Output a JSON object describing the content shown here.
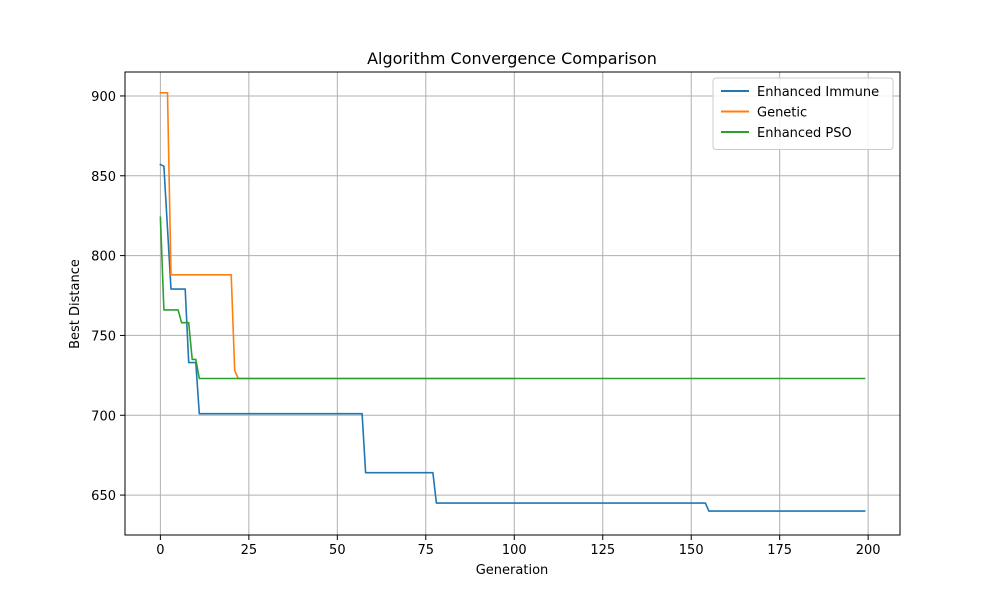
{
  "chart_data": {
    "type": "line",
    "title": "Algorithm Convergence Comparison",
    "xlabel": "Generation",
    "ylabel": "Best Distance",
    "xlim": [
      -10,
      209
    ],
    "ylim": [
      625,
      915
    ],
    "xticks": [
      0,
      25,
      50,
      75,
      100,
      125,
      150,
      175,
      200
    ],
    "yticks": [
      650,
      700,
      750,
      800,
      850,
      900
    ],
    "grid": true,
    "legend_position": "top-right",
    "series": [
      {
        "name": "Enhanced Immune",
        "color": "#1f77b4",
        "points": [
          [
            0,
            857
          ],
          [
            1,
            856
          ],
          [
            3,
            779
          ],
          [
            7,
            779
          ],
          [
            8,
            733
          ],
          [
            10,
            733
          ],
          [
            11,
            701
          ],
          [
            57,
            701
          ],
          [
            58,
            664
          ],
          [
            77,
            664
          ],
          [
            78,
            645
          ],
          [
            154,
            645
          ],
          [
            155,
            640
          ],
          [
            199,
            640
          ]
        ]
      },
      {
        "name": "Genetic",
        "color": "#ff7f0e",
        "points": [
          [
            0,
            902
          ],
          [
            2,
            902
          ],
          [
            3,
            788
          ],
          [
            20,
            788
          ],
          [
            21,
            728
          ],
          [
            22,
            723
          ],
          [
            100,
            723
          ]
        ]
      },
      {
        "name": "Enhanced PSO",
        "color": "#2ca02c",
        "points": [
          [
            0,
            824
          ],
          [
            1,
            766
          ],
          [
            5,
            766
          ],
          [
            6,
            758
          ],
          [
            8,
            758
          ],
          [
            9,
            735
          ],
          [
            10,
            735
          ],
          [
            11,
            723
          ],
          [
            199,
            723
          ]
        ]
      }
    ]
  }
}
